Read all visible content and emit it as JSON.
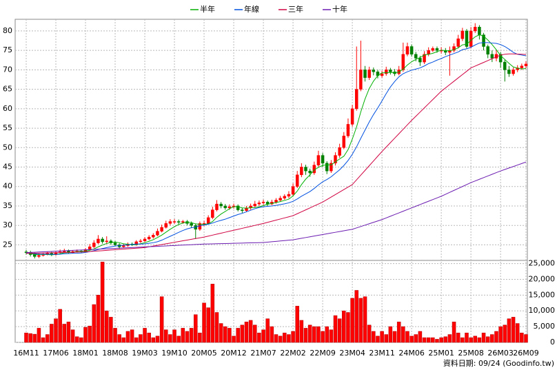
{
  "chart_data": {
    "type": "candlestick",
    "categories": [
      "16M11",
      null,
      null,
      null,
      null,
      null,
      null,
      "17M06",
      null,
      null,
      null,
      null,
      null,
      null,
      "18M01",
      null,
      null,
      null,
      null,
      null,
      null,
      "18M08",
      null,
      null,
      null,
      null,
      null,
      null,
      "19M03",
      null,
      null,
      null,
      null,
      null,
      null,
      "19M10",
      null,
      null,
      null,
      null,
      null,
      null,
      "20M05",
      null,
      null,
      null,
      null,
      null,
      null,
      "20M12",
      null,
      null,
      null,
      null,
      null,
      null,
      "21M07",
      null,
      null,
      null,
      null,
      null,
      null,
      "22M02",
      null,
      null,
      null,
      null,
      null,
      null,
      "22M09",
      null,
      null,
      null,
      null,
      null,
      null,
      "23M04",
      null,
      null,
      null,
      null,
      null,
      null,
      "23M11",
      null,
      null,
      null,
      null,
      null,
      null,
      "24M06",
      null,
      null,
      null,
      null,
      null,
      null,
      "25M01",
      null,
      null,
      null,
      null,
      null,
      null,
      "25M08",
      null,
      null,
      null,
      null,
      null,
      null,
      "26M03",
      null,
      null,
      null,
      null,
      null,
      "26M09"
    ],
    "open": [
      23.2,
      23,
      22.5,
      22,
      22.3,
      22.6,
      22.8,
      22.5,
      23,
      23.2,
      23.5,
      23,
      23.3,
      23.4,
      23.2,
      23.8,
      24.5,
      25.5,
      26.5,
      25.8,
      26,
      25.5,
      25,
      24.5,
      24.8,
      25.2,
      25,
      25.8,
      26,
      26.5,
      27,
      27.5,
      28.5,
      29.5,
      30.5,
      31,
      31,
      30.8,
      31,
      30.5,
      30,
      29,
      30.5,
      30.5,
      32,
      34,
      35.5,
      35,
      34.5,
      34.8,
      35,
      34,
      33.8,
      34.5,
      35,
      35.5,
      35.8,
      36,
      35.5,
      36,
      36.5,
      37,
      37.5,
      38,
      40,
      43,
      45,
      44,
      43.5,
      45.5,
      48,
      46,
      44,
      46,
      48,
      50,
      53,
      56,
      60,
      65,
      70,
      68,
      70,
      69.5,
      68.5,
      69,
      70,
      69.5,
      69,
      70,
      74,
      76,
      74,
      73,
      72,
      74,
      75,
      75.5,
      75,
      75,
      74.5,
      75,
      76,
      78,
      80,
      76,
      80,
      81,
      79,
      76,
      74,
      73,
      74,
      72,
      70,
      69,
      70,
      70.5,
      71
    ],
    "high": [
      23.7,
      23.5,
      23,
      22.8,
      23,
      23.2,
      23.2,
      23.4,
      23.8,
      24,
      23.8,
      23.6,
      23.8,
      23.7,
      24.2,
      25.2,
      26.2,
      27.5,
      27,
      27.2,
      26.4,
      26,
      25.4,
      25.2,
      25.6,
      25.6,
      26.2,
      26.5,
      27,
      27.5,
      28,
      29.2,
      30.2,
      31.2,
      31.6,
      31.6,
      31.5,
      31.4,
      31.4,
      31,
      30.5,
      31,
      31.2,
      32.6,
      34.8,
      36.5,
      36,
      35.5,
      35.4,
      35.6,
      35.4,
      34.5,
      35,
      35.6,
      36.3,
      36.4,
      36.6,
      36.4,
      36.6,
      37,
      37.6,
      38,
      38.8,
      40.8,
      44,
      46,
      45.6,
      44.6,
      46.4,
      49.2,
      48.6,
      46.5,
      46.8,
      48.8,
      51,
      54,
      57.5,
      61,
      76,
      77.5,
      71,
      70.8,
      70.6,
      70,
      69.8,
      70.8,
      70.5,
      70.2,
      71,
      77,
      77,
      76.5,
      74.6,
      73.6,
      74.8,
      75.8,
      76,
      76,
      75.8,
      75.6,
      76,
      76.8,
      79,
      80.8,
      80.5,
      81,
      82,
      81.5,
      79.5,
      76.5,
      75,
      75,
      74.6,
      72.6,
      71,
      70.6,
      71.2,
      71.6,
      72.2
    ],
    "low": [
      22.5,
      22,
      21.5,
      21.6,
      22,
      22.3,
      22.1,
      22.2,
      22.8,
      23,
      22.7,
      22.8,
      23,
      22.9,
      23,
      23.5,
      24.2,
      25.2,
      25.3,
      25.2,
      25,
      24.6,
      24,
      24.2,
      24.5,
      24.7,
      24.8,
      25.5,
      25.7,
      26.2,
      26.6,
      27.2,
      28.2,
      29.2,
      30,
      30.4,
      30.3,
      30.4,
      30,
      29.4,
      26.5,
      28.6,
      29.8,
      30.2,
      31.6,
      33.6,
      34.4,
      34,
      34,
      34.3,
      33.6,
      33.2,
      33.4,
      34,
      34.6,
      35,
      35.3,
      35,
      35.2,
      35.6,
      36.2,
      36.6,
      37,
      37.6,
      39.6,
      42.4,
      43,
      42.5,
      43,
      45,
      45,
      43.2,
      43.5,
      45.4,
      47.4,
      49.6,
      52.5,
      55.4,
      59.5,
      64.5,
      67,
      67.4,
      68.6,
      67.8,
      68,
      68.5,
      68.8,
      68.4,
      68.6,
      69.5,
      73.5,
      73.4,
      72.2,
      71,
      71.5,
      73.5,
      74.6,
      74.4,
      74.2,
      73.8,
      68.5,
      74.5,
      75.5,
      77.4,
      75.5,
      75.5,
      79.5,
      77.8,
      75,
      73,
      72,
      72.2,
      70.5,
      67,
      68.2,
      68.5,
      69.4,
      70,
      70.4
    ],
    "close": [
      23,
      22.5,
      22,
      22.3,
      22.6,
      22.8,
      22.5,
      23,
      23.2,
      23.5,
      23,
      23.3,
      23.4,
      23.2,
      23.8,
      24.5,
      25.5,
      26.5,
      25.8,
      26,
      25.5,
      25,
      24.5,
      24.8,
      25.2,
      25,
      25.8,
      26,
      26.5,
      27,
      27.5,
      28.5,
      29.5,
      30.5,
      31,
      31,
      30.8,
      31,
      30.5,
      30,
      29,
      30.5,
      30.5,
      32,
      34,
      35.5,
      35,
      34.5,
      34.8,
      35,
      34,
      33.8,
      34.5,
      35,
      35.5,
      35.8,
      36,
      35.5,
      36,
      36.5,
      37,
      37.5,
      38,
      40,
      43,
      45,
      44,
      43.5,
      45.5,
      48,
      46,
      44,
      46,
      48,
      50,
      53,
      56,
      60,
      65,
      70,
      68,
      70,
      69.5,
      68.5,
      69,
      70,
      69.5,
      69,
      70,
      74,
      76,
      74,
      73,
      72,
      74,
      75,
      75.5,
      75,
      75,
      74.5,
      75,
      76,
      78,
      80,
      76,
      80,
      81,
      79,
      76,
      74,
      73,
      74,
      72,
      70,
      69,
      70,
      70.5,
      71,
      71.5
    ],
    "up_color": "#ff0000",
    "down_color": "#008000",
    "series": [
      {
        "name": "半年",
        "color": "#00b000",
        "values": [
          23,
          22.8,
          22.5,
          22.5,
          22.5,
          22.5,
          22.45,
          22.53,
          22.73,
          22.97,
          23,
          23.12,
          23.27,
          23.27,
          23.37,
          23.62,
          23.95,
          24.48,
          24.95,
          25.35,
          25.63,
          25.72,
          25.55,
          25.27,
          25.17,
          25,
          25.05,
          25.3,
          25.55,
          25.92,
          26.33,
          26.88,
          27.5,
          28.25,
          29,
          29.67,
          30.22,
          30.63,
          30.8,
          30.72,
          30.38,
          30.3,
          30.25,
          30.42,
          31,
          32.08,
          32.92,
          33.58,
          34.3,
          34.8,
          34.8,
          34.5,
          34.43,
          34.52,
          34.6,
          34.77,
          35.1,
          35.43,
          35.63,
          35.88,
          36.13,
          36.42,
          36.75,
          37.58,
          38.83,
          40.5,
          41.9,
          43,
          44.25,
          44.92,
          45.42,
          45.58,
          45.55,
          46.33,
          47.08,
          47.8,
          49.5,
          52.2,
          55.3,
          59.2,
          62.5,
          65.2,
          67.1,
          68.5,
          69.25,
          69.25,
          69.33,
          69.25,
          69.42,
          70.17,
          71.25,
          72.08,
          72.7,
          73.17,
          73.83,
          74,
          74.25,
          74.67,
          75.08,
          74.92,
          74.92,
          75.17,
          75.67,
          76.42,
          76.58,
          77.58,
          78.5,
          79,
          78.67,
          77.67,
          76.5,
          75.17,
          73.67,
          72.67,
          71.67,
          70.75,
          70.42,
          70.25,
          70.33
        ]
      },
      {
        "name": "年線",
        "color": "#0050e0",
        "values": [
          23,
          22.9,
          22.7,
          22.6,
          22.6,
          22.6,
          22.55,
          22.55,
          22.6,
          22.7,
          22.75,
          22.83,
          22.85,
          22.9,
          23.05,
          23.25,
          23.5,
          23.8,
          24.05,
          24.3,
          24.5,
          24.7,
          24.8,
          24.9,
          25,
          25.1,
          25.2,
          25.2,
          25.25,
          25.4,
          25.55,
          25.8,
          26.2,
          26.7,
          27.2,
          27.7,
          28.2,
          28.7,
          29.1,
          29.4,
          29.6,
          29.9,
          30.1,
          30.3,
          30.6,
          31,
          31.3,
          31.6,
          32,
          32.4,
          32.8,
          33.1,
          33.5,
          33.9,
          34.3,
          34.6,
          34.8,
          34.9,
          35,
          35.15,
          35.35,
          35.55,
          35.8,
          36.2,
          36.8,
          37.5,
          38.1,
          38.7,
          39.5,
          40.4,
          41.2,
          41.8,
          42.5,
          43.4,
          44.3,
          45.4,
          46.7,
          48.3,
          50.2,
          52.4,
          54.5,
          56.6,
          58.5,
          60.2,
          62,
          63.9,
          65.6,
          67,
          68.2,
          69,
          69.5,
          69.9,
          70.2,
          70.5,
          71,
          71.6,
          72,
          72.5,
          72.9,
          73.4,
          73.8,
          74.2,
          74.6,
          75.2,
          75.4,
          75.8,
          76.4,
          76.9,
          77,
          77,
          76.9,
          76.8,
          76.5,
          76,
          75.3,
          74.5,
          74,
          73.8,
          73.6
        ]
      },
      {
        "name": "三年",
        "color": "#d00040",
        "values": [
          22.8,
          22.83,
          22.86,
          22.89,
          22.91,
          22.94,
          22.97,
          23,
          23.03,
          23.06,
          23.09,
          23.11,
          23.14,
          23.17,
          23.2,
          23.28,
          23.36,
          23.44,
          23.51,
          23.59,
          23.67,
          23.75,
          23.83,
          23.91,
          23.99,
          24.06,
          24.14,
          24.22,
          24.3,
          24.49,
          24.69,
          24.88,
          25.07,
          25.27,
          25.46,
          25.66,
          25.85,
          26.04,
          26.23,
          26.42,
          26.62,
          26.81,
          27,
          27.25,
          27.5,
          27.75,
          28,
          28.25,
          28.5,
          28.75,
          29,
          29.25,
          29.5,
          29.75,
          30,
          30.25,
          30.5,
          30.79,
          31.07,
          31.36,
          31.64,
          31.93,
          32.21,
          32.5,
          33,
          33.5,
          34,
          34.5,
          35,
          35.5,
          36,
          36.64,
          37.29,
          37.93,
          38.57,
          39.21,
          39.86,
          40.5,
          41.71,
          42.93,
          44.14,
          45.36,
          46.57,
          47.79,
          49,
          50.14,
          51.29,
          52.43,
          53.57,
          54.71,
          55.86,
          57,
          58.07,
          59.14,
          60.21,
          61.29,
          62.36,
          63.43,
          64.5,
          65.36,
          66.21,
          67.07,
          67.93,
          68.79,
          69.64,
          70.5,
          70.97,
          71.44,
          71.91,
          72.39,
          72.86,
          73.33,
          73.8,
          74,
          74.1,
          74.1,
          74.05,
          74,
          73.95
        ]
      },
      {
        "name": "十年",
        "color": "#6a1ab0",
        "values": [
          23,
          23.05,
          23.1,
          23.16,
          23.21,
          23.26,
          23.31,
          23.37,
          23.42,
          23.47,
          23.52,
          23.58,
          23.63,
          23.68,
          23.73,
          23.79,
          23.84,
          23.89,
          23.94,
          24,
          24.05,
          24.1,
          24.15,
          24.21,
          24.26,
          24.31,
          24.36,
          24.41,
          24.47,
          24.52,
          24.57,
          24.62,
          24.68,
          24.73,
          24.78,
          24.83,
          24.89,
          24.94,
          24.99,
          25.04,
          25.1,
          25.15,
          25.2,
          25.23,
          25.26,
          25.29,
          25.31,
          25.34,
          25.37,
          25.4,
          25.43,
          25.46,
          25.49,
          25.51,
          25.54,
          25.57,
          25.6,
          25.7,
          25.8,
          25.9,
          26,
          26.1,
          26.2,
          26.3,
          26.49,
          26.69,
          26.88,
          27.07,
          27.26,
          27.46,
          27.65,
          27.84,
          28.04,
          28.23,
          28.42,
          28.61,
          28.81,
          29,
          29.36,
          29.71,
          30.07,
          30.43,
          30.79,
          31.14,
          31.5,
          31.93,
          32.36,
          32.79,
          33.21,
          33.64,
          34.07,
          34.5,
          34.93,
          35.36,
          35.79,
          36.21,
          36.64,
          37.07,
          37.5,
          38,
          38.5,
          39,
          39.5,
          40,
          40.5,
          41,
          41.43,
          41.86,
          42.29,
          42.71,
          43.14,
          43.57,
          44,
          44.38,
          44.76,
          45.14,
          45.52,
          45.91,
          46.3
        ]
      }
    ],
    "ylim": [
      21,
      83
    ],
    "yticks": [
      25,
      30,
      35,
      40,
      45,
      50,
      55,
      60,
      65,
      70,
      75,
      80
    ],
    "grid": true,
    "volume": {
      "color": "#ff0000",
      "values": [
        3000,
        2800,
        2600,
        4500,
        1500,
        2500,
        5800,
        7500,
        10500,
        5800,
        6500,
        4000,
        1800,
        1500,
        4800,
        5200,
        12000,
        15000,
        25500,
        10000,
        8000,
        4500,
        2500,
        1500,
        3500,
        4000,
        1500,
        2500,
        4500,
        3000,
        1500,
        2000,
        14500,
        4000,
        2500,
        4000,
        2000,
        4500,
        3500,
        4500,
        8800,
        3000,
        12500,
        11000,
        18500,
        9500,
        6000,
        5000,
        4500,
        2000,
        4500,
        5500,
        6500,
        7000,
        5500,
        3000,
        4000,
        7500,
        5000,
        2500,
        2000,
        3000,
        2500,
        3500,
        11500,
        7000,
        4500,
        5500,
        5000,
        5000,
        3500,
        5000,
        4000,
        8500,
        7500,
        10000,
        9500,
        14000,
        16500,
        14000,
        14500,
        5500,
        3500,
        2000,
        3500,
        2500,
        5000,
        3500,
        6500,
        5000,
        3500,
        2000,
        2500,
        3500,
        1500,
        1500,
        1500,
        1000,
        1500,
        1800,
        2500,
        6500,
        3000,
        1500,
        3000,
        1500,
        2000,
        1500,
        3000,
        1800,
        2500,
        3500,
        5000,
        5500,
        7500,
        8000,
        6000,
        3000,
        2500
      ],
      "ylim": [
        0,
        26000
      ],
      "yticks": [
        0,
        {
          "value": 5000,
          "label": "5,000"
        },
        {
          "value": 10000,
          "label": "10,000"
        },
        {
          "value": 15000,
          "label": "15,000"
        },
        {
          "value": 20000,
          "label": "20,000"
        },
        {
          "value": 25000,
          "label": "25,000"
        }
      ]
    },
    "note": "資料日期: 09/24 (Goodinfo.tw)"
  }
}
